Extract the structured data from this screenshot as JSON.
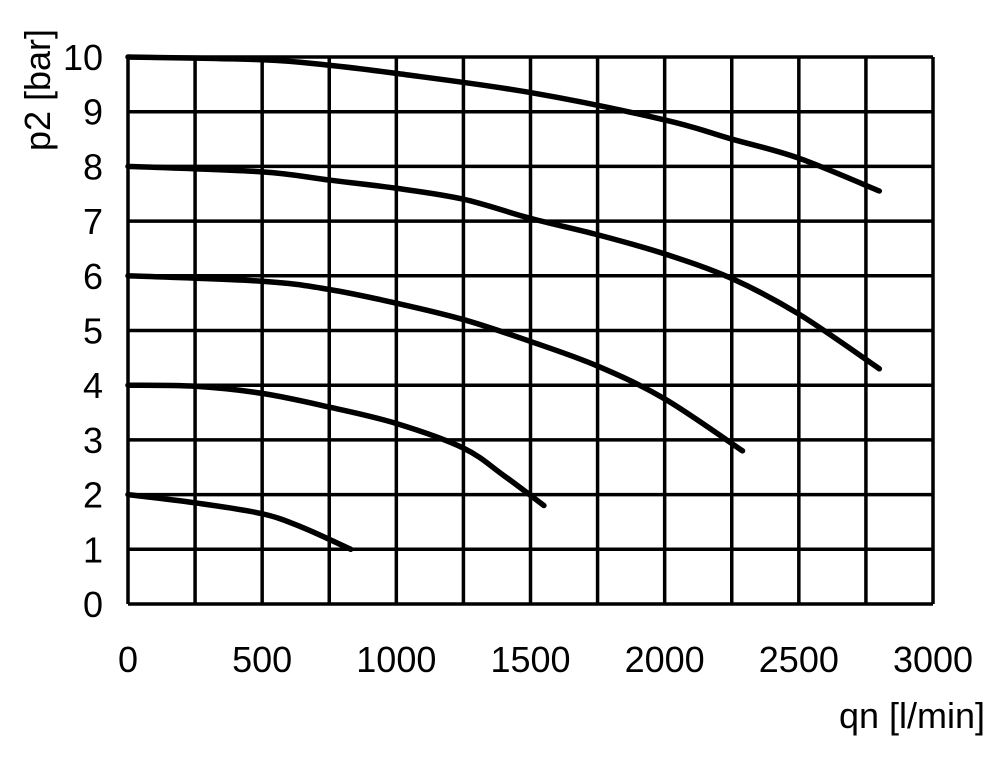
{
  "chart_data": {
    "type": "line",
    "xlabel": "qn [l/min]",
    "ylabel": "p2 [bar]",
    "xlim": [
      0,
      3000
    ],
    "ylim": [
      0,
      10
    ],
    "xticks": [
      "0",
      "500",
      "1000",
      "1500",
      "2000",
      "2500",
      "3000"
    ],
    "yticks": [
      "0",
      "1",
      "2",
      "3",
      "4",
      "5",
      "6",
      "7",
      "8",
      "9",
      "10"
    ],
    "x_grid_step": 250,
    "y_grid_step": 1,
    "grid": true,
    "legend": "none",
    "series": [
      {
        "points": [
          [
            0,
            10
          ],
          [
            500,
            9.95
          ],
          [
            750,
            9.85
          ],
          [
            1000,
            9.7
          ],
          [
            1500,
            9.35
          ],
          [
            2000,
            8.85
          ],
          [
            2250,
            8.5
          ],
          [
            2500,
            8.15
          ],
          [
            2800,
            7.55
          ]
        ]
      },
      {
        "points": [
          [
            0,
            8
          ],
          [
            500,
            7.9
          ],
          [
            750,
            7.75
          ],
          [
            1000,
            7.6
          ],
          [
            1250,
            7.4
          ],
          [
            1500,
            7.05
          ],
          [
            1750,
            6.75
          ],
          [
            2000,
            6.4
          ],
          [
            2250,
            5.95
          ],
          [
            2500,
            5.3
          ],
          [
            2800,
            4.3
          ]
        ]
      },
      {
        "points": [
          [
            0,
            6
          ],
          [
            500,
            5.9
          ],
          [
            750,
            5.75
          ],
          [
            1000,
            5.5
          ],
          [
            1250,
            5.2
          ],
          [
            1500,
            4.8
          ],
          [
            1750,
            4.35
          ],
          [
            2000,
            3.75
          ],
          [
            2290,
            2.8
          ]
        ]
      },
      {
        "points": [
          [
            0,
            4
          ],
          [
            250,
            3.98
          ],
          [
            500,
            3.85
          ],
          [
            750,
            3.6
          ],
          [
            1000,
            3.3
          ],
          [
            1250,
            2.85
          ],
          [
            1400,
            2.35
          ],
          [
            1550,
            1.8
          ]
        ]
      },
      {
        "points": [
          [
            0,
            2
          ],
          [
            250,
            1.85
          ],
          [
            500,
            1.65
          ],
          [
            650,
            1.4
          ],
          [
            830,
            1.0
          ]
        ]
      }
    ]
  }
}
